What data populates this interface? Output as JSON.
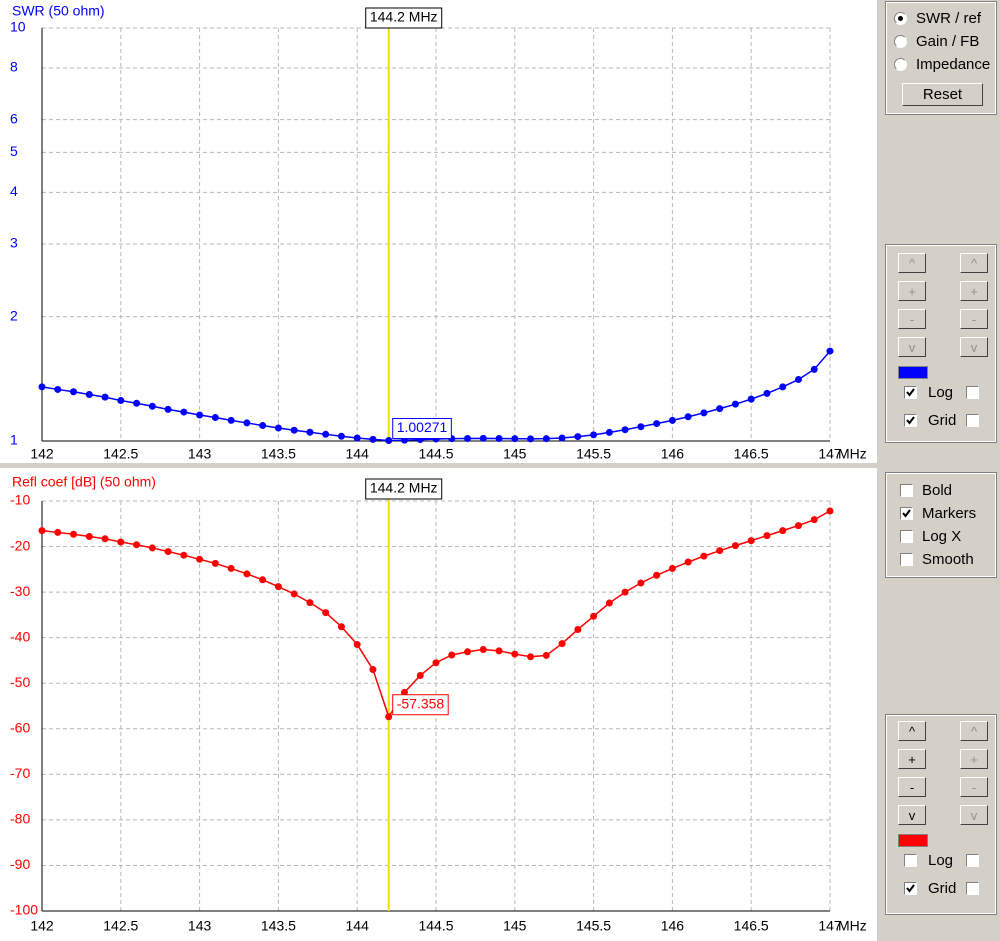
{
  "chart_data": [
    {
      "type": "line",
      "ylabel": "SWR (50 ohm)",
      "color": "#0000ff",
      "log_y": true,
      "grid": true,
      "markers": true,
      "xlim": [
        142,
        147
      ],
      "xticks": [
        142,
        142.5,
        143,
        143.5,
        144,
        144.5,
        145,
        145.5,
        146,
        146.5,
        147
      ],
      "x_unit": "MHz",
      "ylim": [
        1,
        10
      ],
      "yticks": [
        1,
        2,
        3,
        4,
        5,
        6,
        8,
        10
      ],
      "cursor_x": 144.2,
      "cursor_label": "144.2 MHz",
      "x": [
        142,
        142.1,
        142.2,
        142.3,
        142.4,
        142.5,
        142.6,
        142.7,
        142.8,
        142.9,
        143,
        143.1,
        143.2,
        143.3,
        143.4,
        143.5,
        143.6,
        143.7,
        143.8,
        143.9,
        144,
        144.1,
        144.2,
        144.3,
        144.4,
        144.5,
        144.6,
        144.7,
        144.8,
        144.9,
        145,
        145.1,
        145.2,
        145.3,
        145.4,
        145.5,
        145.6,
        145.7,
        145.8,
        145.9,
        146,
        146.1,
        146.2,
        146.3,
        146.4,
        146.5,
        146.6,
        146.7,
        146.8,
        146.9,
        147
      ],
      "values": [
        1.352,
        1.333,
        1.316,
        1.296,
        1.277,
        1.253,
        1.234,
        1.214,
        1.193,
        1.175,
        1.156,
        1.14,
        1.122,
        1.106,
        1.09,
        1.075,
        1.062,
        1.05,
        1.038,
        1.027,
        1.017,
        1.009,
        1.00271,
        1.005,
        1.008,
        1.011,
        1.013,
        1.014,
        1.015,
        1.014,
        1.013,
        1.012,
        1.013,
        1.017,
        1.025,
        1.035,
        1.049,
        1.065,
        1.083,
        1.102,
        1.122,
        1.145,
        1.17,
        1.198,
        1.228,
        1.263,
        1.304,
        1.352,
        1.409,
        1.491,
        1.651
      ]
    },
    {
      "type": "line",
      "ylabel": "Refl coef [dB] (50 ohm)",
      "color": "#ff0000",
      "log_y": false,
      "grid": true,
      "markers": true,
      "xlim": [
        142,
        147
      ],
      "xticks": [
        142,
        142.5,
        143,
        143.5,
        144,
        144.5,
        145,
        145.5,
        146,
        146.5,
        147
      ],
      "x_unit": "MHz",
      "ylim": [
        -100,
        -10
      ],
      "yticks": [
        -100,
        -90,
        -80,
        -70,
        -60,
        -50,
        -40,
        -30,
        -20,
        -10
      ],
      "cursor_x": 144.2,
      "cursor_label": "144.2 MHz",
      "x": [
        142,
        142.1,
        142.2,
        142.3,
        142.4,
        142.5,
        142.6,
        142.7,
        142.8,
        142.9,
        143,
        143.1,
        143.2,
        143.3,
        143.4,
        143.5,
        143.6,
        143.7,
        143.8,
        143.9,
        144,
        144.1,
        144.2,
        144.3,
        144.4,
        144.5,
        144.6,
        144.7,
        144.8,
        144.9,
        145,
        145.1,
        145.2,
        145.3,
        145.4,
        145.5,
        145.6,
        145.7,
        145.8,
        145.9,
        146,
        146.1,
        146.2,
        146.3,
        146.4,
        146.5,
        146.6,
        146.7,
        146.8,
        146.9,
        147
      ],
      "values": [
        -16.5,
        -16.9,
        -17.3,
        -17.8,
        -18.3,
        -19,
        -19.6,
        -20.3,
        -21.1,
        -21.9,
        -22.8,
        -23.7,
        -24.8,
        -26,
        -27.3,
        -28.8,
        -30.4,
        -32.3,
        -34.5,
        -37.6,
        -41.5,
        -47,
        -57.358,
        -52,
        -48.3,
        -45.5,
        -43.8,
        -43.1,
        -42.6,
        -42.9,
        -43.6,
        -44.2,
        -43.9,
        -41.3,
        -38.2,
        -35.3,
        -32.4,
        -30,
        -28,
        -26.3,
        -24.8,
        -23.4,
        -22.1,
        -20.9,
        -19.8,
        -18.7,
        -17.6,
        -16.5,
        -15.4,
        -14.1,
        -12.2
      ]
    }
  ],
  "controls": {
    "modes": [
      {
        "label": "SWR / ref",
        "selected": true
      },
      {
        "label": "Gain / FB",
        "selected": false
      },
      {
        "label": "Impedance",
        "selected": false
      }
    ],
    "reset": "Reset",
    "panels": [
      {
        "buttons": [
          "^",
          "+",
          "-",
          "v"
        ],
        "buttons_enabled": false,
        "color": "#0000ff",
        "log": {
          "label": "Log",
          "checked": true
        },
        "grid": {
          "label": "Grid",
          "checked": true
        }
      },
      {
        "buttons": [
          "^",
          "+",
          "-",
          "v"
        ],
        "buttons_enabled": true,
        "color": "#ff0000",
        "log": {
          "label": "Log",
          "checked": false
        },
        "grid": {
          "label": "Grid",
          "checked": true
        }
      }
    ],
    "options": [
      {
        "label": "Bold",
        "checked": false
      },
      {
        "label": "Markers",
        "checked": true
      },
      {
        "label": "Log X",
        "checked": false
      },
      {
        "label": "Smooth",
        "checked": false
      }
    ]
  }
}
